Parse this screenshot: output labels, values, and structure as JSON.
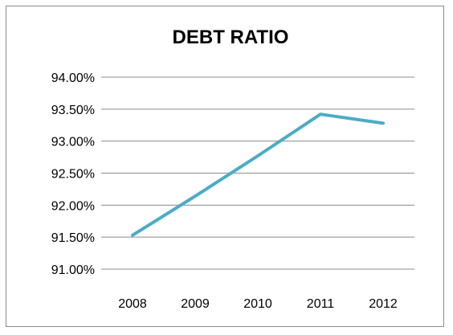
{
  "chart_data": {
    "type": "line",
    "title": "DEBT RATIO",
    "xlabel": "",
    "ylabel": "",
    "categories": [
      "2008",
      "2009",
      "2010",
      "2011",
      "2012"
    ],
    "series": [
      {
        "values": [
          91.53,
          92.14,
          92.77,
          93.42,
          93.28
        ],
        "color": "#4bacc6"
      }
    ],
    "ylim": [
      91.0,
      94.0
    ],
    "yticks": [
      91.0,
      91.5,
      92.0,
      92.5,
      93.0,
      93.5,
      94.0
    ],
    "ytick_labels": [
      "91.00%",
      "91.50%",
      "92.00%",
      "92.50%",
      "93.00%",
      "93.50%",
      "94.00%"
    ],
    "grid": true,
    "legend": "none"
  }
}
